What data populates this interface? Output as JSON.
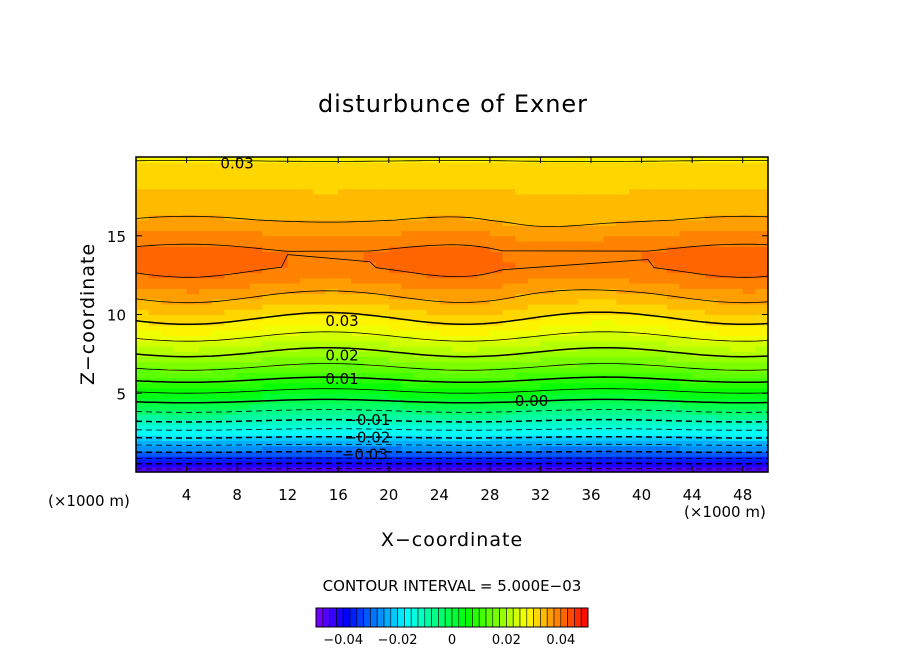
{
  "chart_data": {
    "type": "heatmap",
    "title": "disturbunce of Exner",
    "xlabel": "X−coordinate",
    "ylabel": "Z−coordinate",
    "x_unit": "(×1000 m)",
    "y_unit": "(×1000 m)",
    "xlim": [
      0,
      50
    ],
    "ylim": [
      0,
      20
    ],
    "x_ticks": [
      4,
      8,
      12,
      16,
      20,
      24,
      28,
      32,
      36,
      40,
      44,
      48
    ],
    "x_tick_labels": [
      "4",
      "8",
      "12",
      "16",
      "20",
      "24",
      "28",
      "32",
      "36",
      "40",
      "44",
      "48"
    ],
    "y_ticks": [
      5,
      10,
      15
    ],
    "y_tick_labels": [
      "5",
      "10",
      "15"
    ],
    "contour_interval_text": "CONTOUR INTERVAL = 5.000E−03",
    "contour_interval": 0.005,
    "value_range": [
      -0.05,
      0.05
    ],
    "vertical_profile": {
      "z": [
        0,
        1,
        2,
        3,
        4,
        5,
        6,
        7,
        8,
        9,
        10,
        11,
        12,
        13,
        14,
        15,
        16,
        17,
        18,
        19,
        20
      ],
      "value": [
        -0.048,
        -0.033,
        -0.022,
        -0.012,
        -0.004,
        0.004,
        0.011,
        0.017,
        0.022,
        0.027,
        0.031,
        0.0345,
        0.038,
        0.0405,
        0.0405,
        0.038,
        0.035,
        0.0335,
        0.0325,
        0.0315,
        0.0295
      ]
    },
    "contour_labels": [
      {
        "text": "0.03",
        "x": 16.3,
        "y": 9.6
      },
      {
        "text": "0.02",
        "x": 16.3,
        "y": 7.4
      },
      {
        "text": "0.01",
        "x": 16.3,
        "y": 5.9
      },
      {
        "text": "0.00",
        "x": 31.3,
        "y": 4.5
      },
      {
        "text": "−0.01",
        "x": 18.3,
        "y": 3.3
      },
      {
        "text": "−0.02",
        "x": 18.3,
        "y": 2.2
      },
      {
        "text": "−0.03",
        "x": 18.1,
        "y": 1.1
      },
      {
        "text": "0.03",
        "x": 8.0,
        "y": 19.6
      }
    ],
    "colorbar": {
      "colors": [
        "#ffffff",
        "#000000",
        "#7f00ff",
        "#0000ff",
        "#0080ff",
        "#00ffff",
        "#00ff80",
        "#00ff00",
        "#80ff00",
        "#ffff00",
        "#ff8000",
        "#ff0000"
      ],
      "tick_values": [
        -0.04,
        -0.02,
        0,
        0.02,
        0.04
      ],
      "tick_labels": [
        "−0.04",
        "−0.02",
        "0",
        "0.02",
        "0.04"
      ]
    }
  }
}
